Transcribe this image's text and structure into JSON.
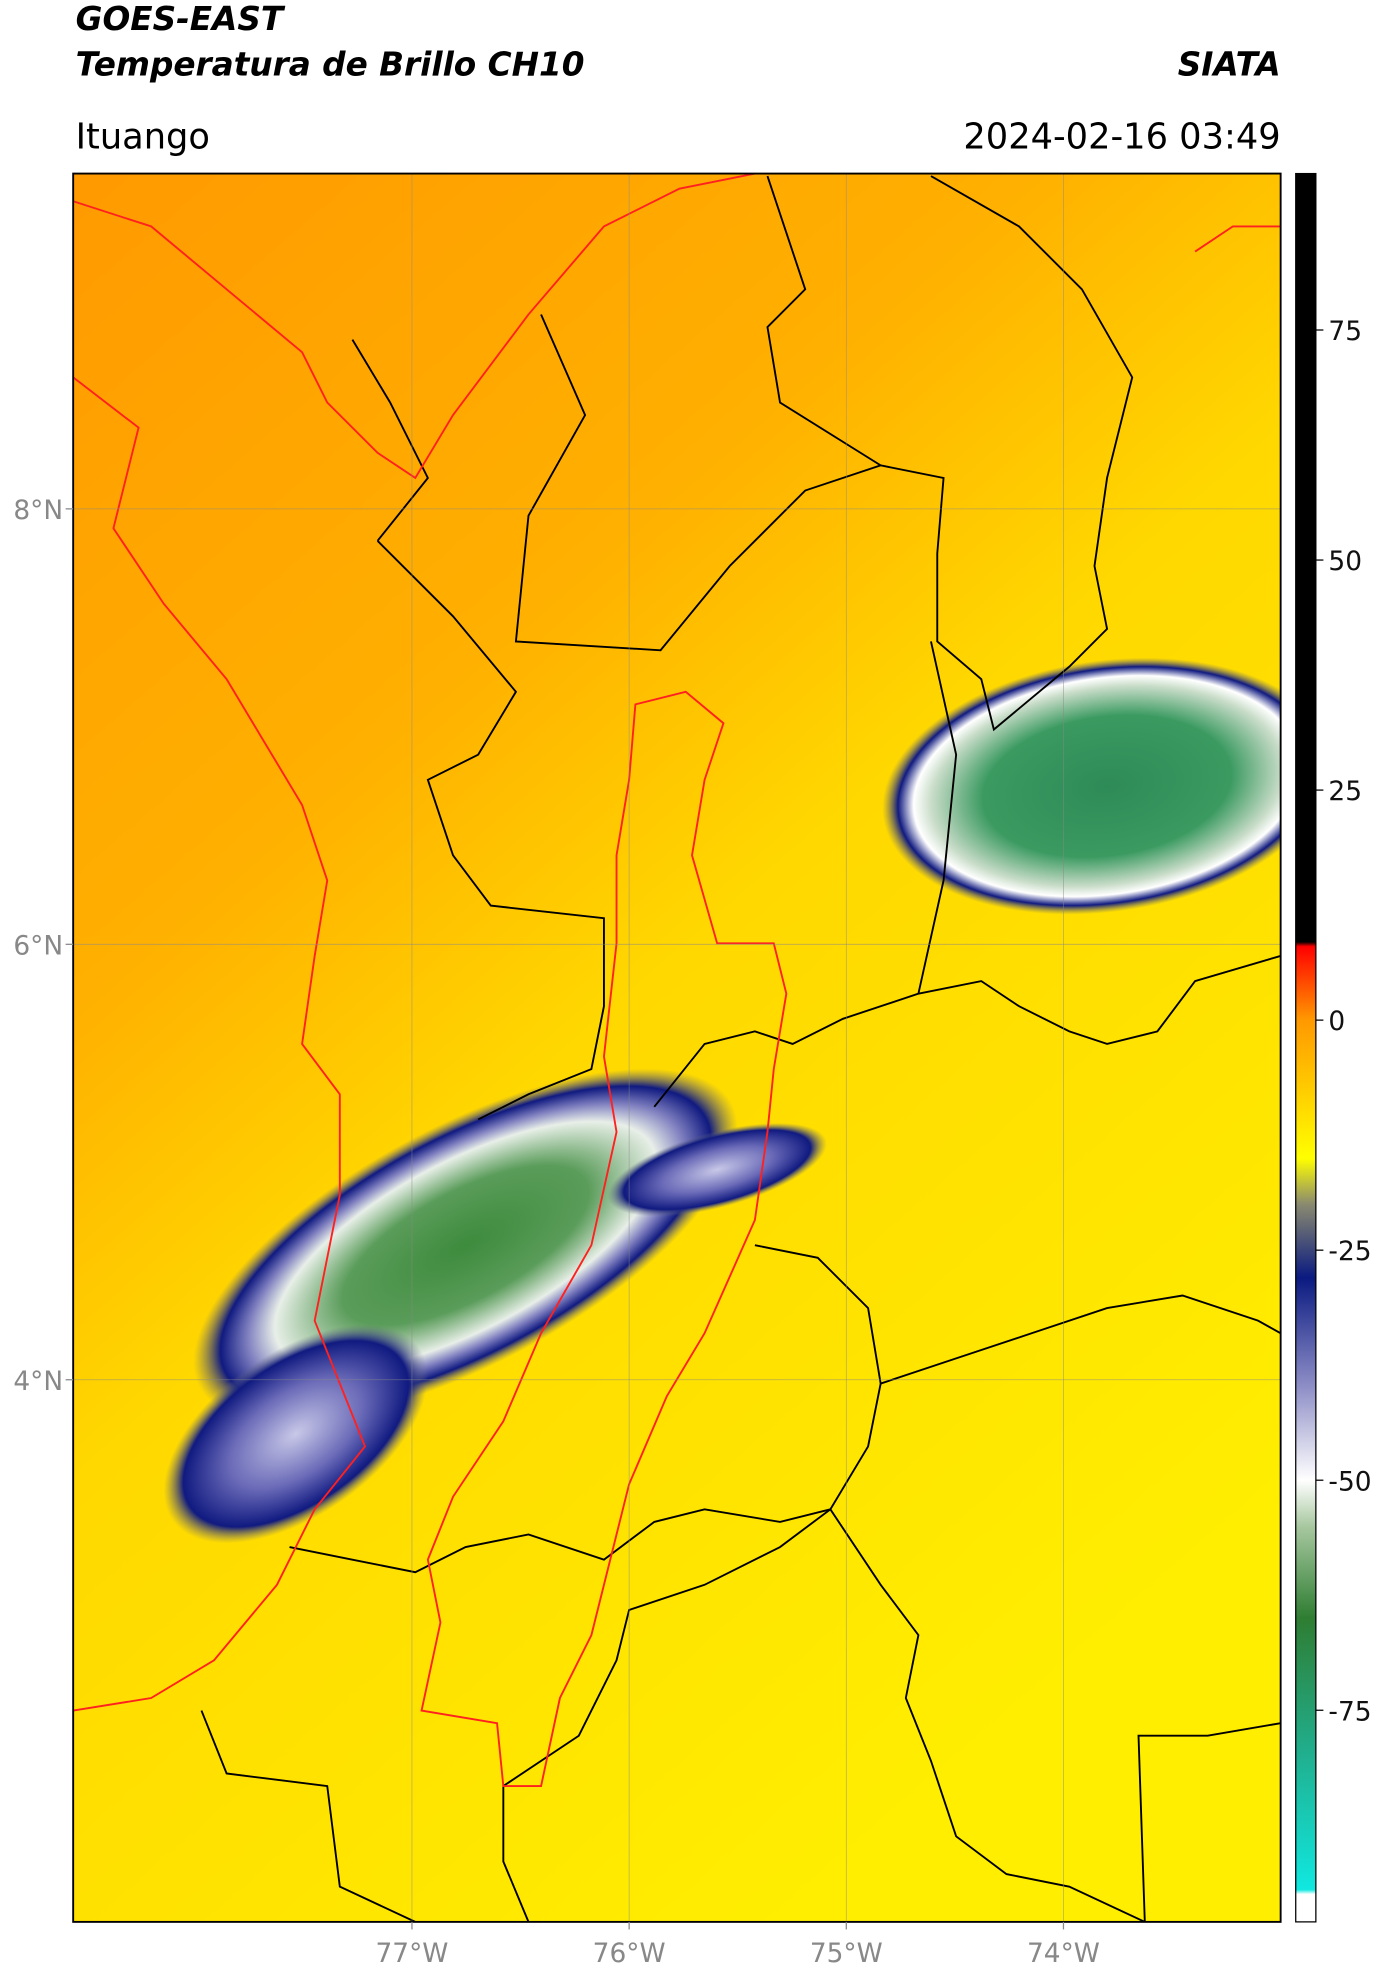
{
  "header": {
    "title_line1": "GOES-EAST",
    "title_line2": "Temperatura de Brillo CH10",
    "source": "SIATA",
    "location": "Ituango",
    "timestamp": "2024-02-16 03:49"
  },
  "map": {
    "xlim": [
      -78.56,
      -73.0
    ],
    "ylim": [
      1.51,
      9.54
    ],
    "xticks": [
      {
        "value": -77,
        "label": "77°W"
      },
      {
        "value": -76,
        "label": "76°W"
      },
      {
        "value": -75,
        "label": "75°W"
      },
      {
        "value": -74,
        "label": "74°W"
      }
    ],
    "yticks": [
      {
        "value": 8,
        "label": "8°N"
      },
      {
        "value": 6,
        "label": "6°N"
      },
      {
        "value": 4,
        "label": "4°N"
      }
    ],
    "grid": true
  },
  "colorbar": {
    "clim": [
      -98,
      92
    ],
    "ticks": [
      75,
      50,
      25,
      0,
      -25,
      -50,
      -75
    ],
    "stops": [
      {
        "value": -98,
        "color": "#ffffff"
      },
      {
        "value": -95,
        "color": "#ffffff"
      },
      {
        "value": -94.5,
        "color": "#10e8e0"
      },
      {
        "value": -80,
        "color": "#20b090"
      },
      {
        "value": -65,
        "color": "#2e7d32"
      },
      {
        "value": -55,
        "color": "#a8c8a0"
      },
      {
        "value": -50,
        "color": "#ffffff"
      },
      {
        "value": -40,
        "color": "#9090c8"
      },
      {
        "value": -28,
        "color": "#0a1a80"
      },
      {
        "value": -20,
        "color": "#8a8a70"
      },
      {
        "value": -15,
        "color": "#ffff00"
      },
      {
        "value": 0,
        "color": "#ff9900"
      },
      {
        "value": 8,
        "color": "#ff0000"
      },
      {
        "value": 8.5,
        "color": "#000000"
      },
      {
        "value": 92,
        "color": "#000000"
      }
    ]
  }
}
